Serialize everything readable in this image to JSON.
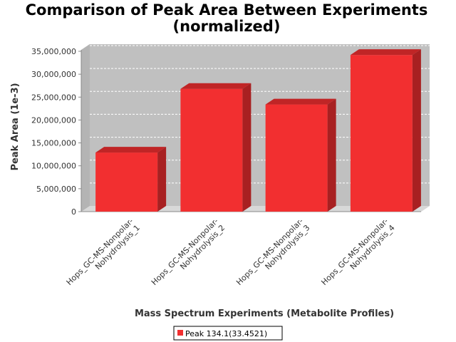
{
  "chart_data": {
    "type": "bar",
    "title_lines": [
      "Comparison of Peak Area Between Experiments",
      "(normalized)"
    ],
    "xlabel": "Mass Spectrum Experiments (Metabolite Profiles)",
    "ylabel": "Peak Area (1e-3)",
    "categories": [
      [
        "Hops_GC-MS-Nonpolar-",
        "Nohydrolysis_1"
      ],
      [
        "Hops_GC-MS-Nonpolar-",
        "Nohydrolysis_2"
      ],
      [
        "Hops_GC-MS-Nonpolar-",
        "Nohydrolysis_3"
      ],
      [
        "Hops_GC-MS-Nonpolar-",
        "Nohydrolysis_4"
      ]
    ],
    "series": [
      {
        "name": "Peak 134.1(33.4521)",
        "values": [
          12900000,
          26800000,
          23400000,
          34200000
        ]
      }
    ],
    "ylim": [
      0,
      35000000
    ],
    "yticks": [
      0,
      5000000,
      10000000,
      15000000,
      20000000,
      25000000,
      30000000,
      35000000
    ],
    "ytick_labels": [
      "0",
      "5,000,000",
      "10,000,000",
      "15,000,000",
      "20,000,000",
      "25,000,000",
      "30,000,000",
      "35,000,000"
    ],
    "grid": true,
    "legend_position": "bottom",
    "colors": {
      "bar": "#f22f30",
      "bar_top": "#c02526",
      "bar_side": "#a82021",
      "plot_bg": "#c0c0c0"
    }
  }
}
